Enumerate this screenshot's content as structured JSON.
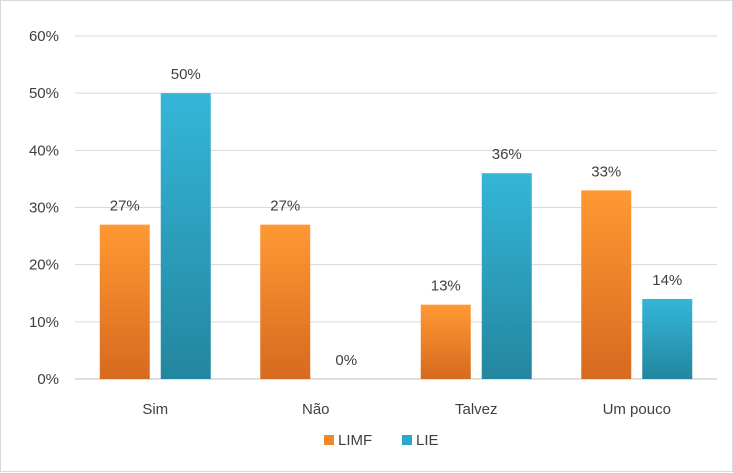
{
  "chart_data": {
    "type": "bar",
    "title": "",
    "xlabel": "",
    "ylabel": "",
    "categories": [
      "Sim",
      "Não",
      "Talvez",
      "Um pouco"
    ],
    "series": [
      {
        "name": "LIMF",
        "values": [
          27,
          27,
          13,
          33
        ],
        "labels": [
          "27%",
          "27%",
          "13%",
          "33%"
        ],
        "color": "#f08a24"
      },
      {
        "name": "LIE",
        "values": [
          50,
          0,
          36,
          14
        ],
        "labels": [
          "50%",
          "0%",
          "36%",
          "14%"
        ],
        "color": "#2aa9cc"
      }
    ],
    "ylim": [
      0,
      60
    ],
    "yticks": [
      0,
      10,
      20,
      30,
      40,
      50,
      60
    ],
    "ytick_labels": [
      "0%",
      "10%",
      "20%",
      "30%",
      "40%",
      "50%",
      "60%"
    ],
    "grid": true,
    "legend_position": "bottom"
  }
}
